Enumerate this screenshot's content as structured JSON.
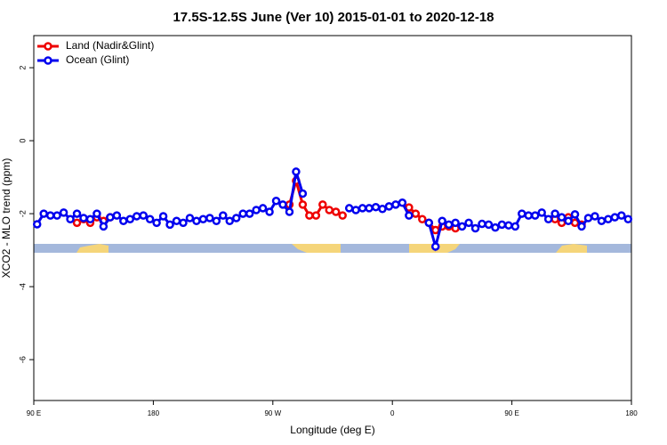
{
  "chart_data": {
    "type": "line",
    "title": "17.5S-12.5S June (Ver 10)   2015-01-01 to 2020-12-18",
    "x_label": "Longitude (deg E)",
    "y_label": "XCO2 - MLO trend (ppm)",
    "xlim": [
      90,
      540
    ],
    "ylim": [
      -7.12,
      2.88
    ],
    "xticks": [
      {
        "value": 90,
        "label": "90 E"
      },
      180,
      {
        "value": 270,
        "label": "90 W"
      },
      {
        "value": 360,
        "label": "0"
      },
      {
        "value": 450,
        "label": "90 E"
      },
      {
        "value": 540,
        "label": "180"
      }
    ],
    "yticks": [
      2,
      0,
      -2,
      -4,
      -6
    ],
    "legend": "top-left",
    "x": [
      92.5,
      97.5,
      102.5,
      107.5,
      112.5,
      117.5,
      122.5,
      127.5,
      132.5,
      137.5,
      142.5,
      147.5,
      152.5,
      157.5,
      162.5,
      167.5,
      172.5,
      177.5,
      182.5,
      187.5,
      192.5,
      197.5,
      202.5,
      207.5,
      212.5,
      217.5,
      222.5,
      227.5,
      232.5,
      237.5,
      242.5,
      247.5,
      252.5,
      257.5,
      262.5,
      267.5,
      272.5,
      277.5,
      282.5,
      287.5,
      292.5,
      297.5,
      302.5,
      307.5,
      312.5,
      317.5,
      322.5,
      327.5,
      332.5,
      337.5,
      342.5,
      347.5,
      352.5,
      357.5,
      362.5,
      367.5,
      372.5,
      377.5,
      382.5,
      387.5,
      392.5,
      397.5,
      402.5,
      407.5,
      412.5,
      417.5,
      422.5,
      427.5,
      432.5,
      437.5,
      442.5,
      447.5,
      452.5,
      457.5,
      462.5,
      467.5,
      472.5,
      477.5,
      482.5,
      487.5,
      492.5,
      497.5,
      502.5,
      507.5,
      512.5,
      517.5,
      522.5,
      527.5,
      532.5,
      537.5
    ],
    "series": [
      {
        "name": "Land (Nadir&Glint)",
        "color": "#ee0000",
        "values": [
          null,
          null,
          null,
          null,
          null,
          null,
          -2.25,
          -2.15,
          -2.25,
          -2.1,
          -2.2,
          -2.1,
          null,
          null,
          null,
          null,
          null,
          null,
          null,
          null,
          null,
          null,
          null,
          null,
          null,
          null,
          null,
          null,
          null,
          null,
          null,
          null,
          null,
          null,
          null,
          null,
          null,
          null,
          -1.75,
          -1.1,
          -1.75,
          -2.05,
          -2.05,
          -1.75,
          -1.9,
          -1.95,
          -2.05,
          null,
          null,
          null,
          null,
          null,
          null,
          null,
          null,
          null,
          -1.83,
          -2.0,
          -2.15,
          -2.25,
          -2.45,
          -2.35,
          -2.35,
          -2.4,
          null,
          null,
          null,
          null,
          null,
          null,
          null,
          null,
          null,
          null,
          null,
          null,
          null,
          null,
          -2.15,
          -2.25,
          -2.1,
          -2.25,
          -2.3,
          null,
          null,
          null,
          null,
          null,
          null,
          null
        ]
      },
      {
        "name": "Ocean (Glint)",
        "color": "#0000ee",
        "values": [
          -2.29,
          -2.0,
          -2.05,
          -2.05,
          -1.97,
          -2.15,
          -2.0,
          -2.12,
          -2.15,
          -2.0,
          -2.35,
          -2.1,
          -2.05,
          -2.2,
          -2.15,
          -2.07,
          -2.05,
          -2.15,
          -2.25,
          -2.07,
          -2.3,
          -2.2,
          -2.25,
          -2.12,
          -2.2,
          -2.15,
          -2.12,
          -2.2,
          -2.05,
          -2.2,
          -2.12,
          -2.0,
          -2.0,
          -1.9,
          -1.85,
          -1.95,
          -1.65,
          -1.75,
          -1.95,
          -0.85,
          -1.45,
          null,
          null,
          null,
          null,
          null,
          null,
          -1.85,
          -1.9,
          -1.85,
          -1.85,
          -1.82,
          -1.87,
          -1.8,
          -1.75,
          -1.7,
          -2.05,
          null,
          null,
          -2.25,
          -2.9,
          -2.2,
          -2.3,
          -2.25,
          -2.35,
          -2.25,
          -2.4,
          -2.28,
          -2.3,
          -2.38,
          -2.3,
          -2.32,
          -2.35,
          -2.0,
          -2.05,
          -2.05,
          -1.97,
          -2.15,
          -2.0,
          -2.1,
          -2.2,
          -2.02,
          -2.35,
          -2.12,
          -2.07,
          -2.2,
          -2.15,
          -2.1,
          -2.05,
          -2.15
        ]
      }
    ]
  }
}
